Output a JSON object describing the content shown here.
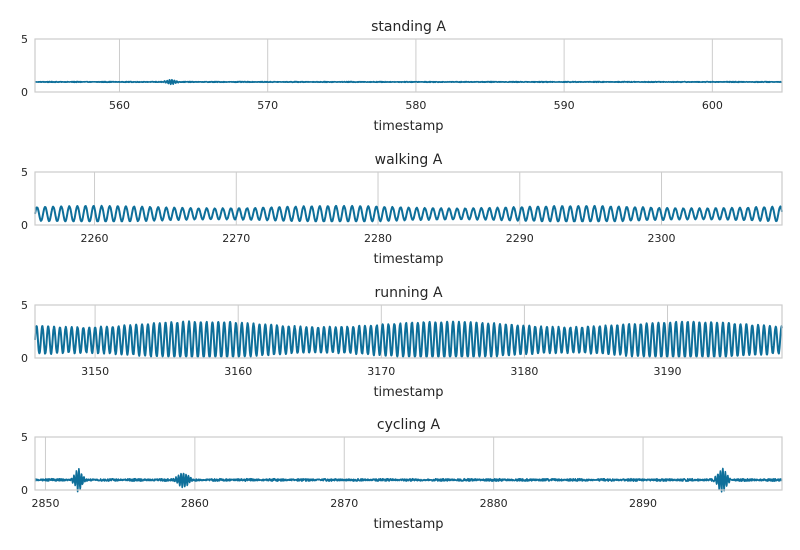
{
  "chart_data": [
    {
      "type": "line",
      "title": "standing A",
      "xlabel": "timestamp",
      "ylabel": "",
      "xlim": [
        554.3,
        604.7
      ],
      "ylim": [
        0,
        5
      ],
      "xticks": [
        560,
        570,
        580,
        590,
        600
      ],
      "yticks": [
        0,
        5
      ],
      "grid": true,
      "color": "#0e6f9a",
      "pattern": {
        "kind": "flat",
        "mean": 0.95,
        "noise": 0.04,
        "bursts": [
          {
            "x": 563.5,
            "amp": 0.25,
            "width": 0.6
          }
        ]
      }
    },
    {
      "type": "line",
      "title": "walking A",
      "xlabel": "timestamp",
      "ylabel": "",
      "xlim": [
        2255.8,
        2308.5
      ],
      "ylim": [
        0,
        5
      ],
      "xticks": [
        2260,
        2270,
        2280,
        2290,
        2300
      ],
      "yticks": [
        0,
        5
      ],
      "grid": true,
      "color": "#0e6f9a",
      "pattern": {
        "kind": "oscillation",
        "mean": 1.05,
        "amp": 0.62,
        "period": 0.57,
        "min": 0.35,
        "max": 1.95
      }
    },
    {
      "type": "line",
      "title": "running A",
      "xlabel": "timestamp",
      "ylabel": "",
      "xlim": [
        3145.8,
        3198.0
      ],
      "ylim": [
        0,
        5
      ],
      "xticks": [
        3150,
        3160,
        3170,
        3180,
        3190
      ],
      "yticks": [
        0,
        5
      ],
      "grid": true,
      "color": "#0e6f9a",
      "pattern": {
        "kind": "oscillation",
        "mean": 1.7,
        "amp": 1.45,
        "period": 0.41,
        "min": 0.15,
        "max": 3.8
      }
    },
    {
      "type": "line",
      "title": "cycling A",
      "xlabel": "timestamp",
      "ylabel": "",
      "xlim": [
        2849.3,
        2899.3
      ],
      "ylim": [
        0,
        5
      ],
      "xticks": [
        2850,
        2860,
        2870,
        2880,
        2890
      ],
      "yticks": [
        0,
        5
      ],
      "grid": true,
      "color": "#0e6f9a",
      "pattern": {
        "kind": "flat",
        "mean": 0.95,
        "noise": 0.12,
        "bursts": [
          {
            "x": 2852.2,
            "amp": 1.1,
            "width": 0.5
          },
          {
            "x": 2859.2,
            "amp": 0.7,
            "width": 0.7
          },
          {
            "x": 2895.3,
            "amp": 1.2,
            "width": 0.6
          }
        ]
      }
    }
  ]
}
